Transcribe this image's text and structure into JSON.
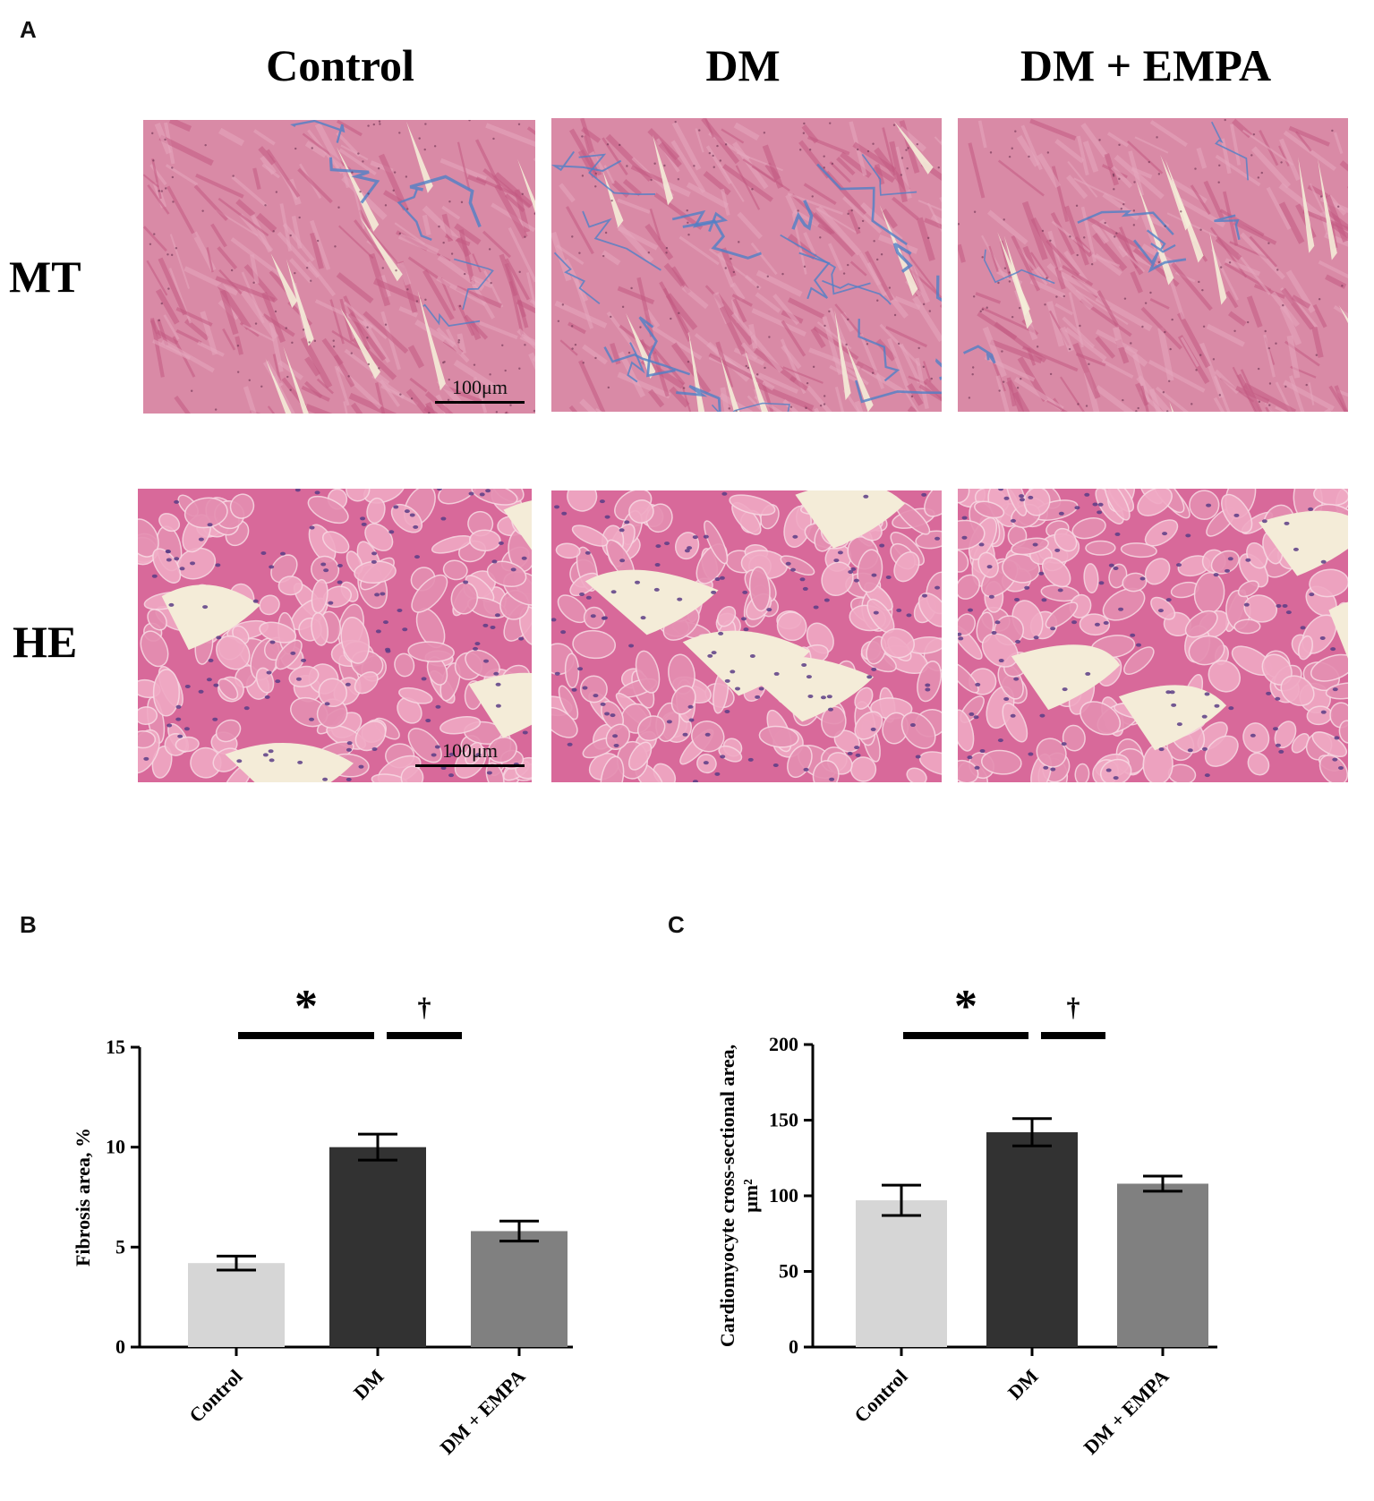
{
  "panel_a": {
    "letter": "A",
    "columns": [
      "Control",
      "DM",
      "DM + EMPA"
    ],
    "rows": [
      "MT",
      "HE"
    ],
    "scale_label": "100μm",
    "stain_colors": {
      "mt_bg": "#d98aa6",
      "mt_fiber": "#c25a82",
      "mt_collagen": "#4f7fc7",
      "he_bg": "#e58fb2",
      "he_cell": "#d8699a",
      "he_nuclei": "#5b3d86",
      "gap": "#f4ecd8"
    }
  },
  "panel_b": {
    "letter": "B"
  },
  "panel_c": {
    "letter": "C"
  },
  "chart_data": [
    {
      "type": "bar",
      "categories": [
        "Control",
        "DM",
        "DM + EMPA"
      ],
      "values": [
        4.2,
        10.0,
        5.8
      ],
      "errors": [
        0.35,
        0.65,
        0.5
      ],
      "colors": [
        "#d6d6d6",
        "#323232",
        "#808080"
      ],
      "ylabel": "Fibrosis area, %",
      "ylim": [
        0,
        15
      ],
      "yticks": [
        "0",
        "5",
        "10",
        "15"
      ],
      "significance": [
        {
          "symbol": "*",
          "between": [
            "Control",
            "DM"
          ]
        },
        {
          "symbol": "†",
          "between": [
            "DM",
            "DM + EMPA"
          ]
        }
      ]
    },
    {
      "type": "bar",
      "categories": [
        "Control",
        "DM",
        "DM + EMPA"
      ],
      "values": [
        97,
        142,
        108
      ],
      "errors": [
        10,
        9,
        5
      ],
      "colors": [
        "#d6d6d6",
        "#323232",
        "#808080"
      ],
      "ylabel": "Cardiomyocyte cross-sectional area,",
      "ylabel2": "μm²",
      "ylim": [
        0,
        200
      ],
      "yticks": [
        "0",
        "50",
        "100",
        "150",
        "200"
      ],
      "significance": [
        {
          "symbol": "*",
          "between": [
            "Control",
            "DM"
          ]
        },
        {
          "symbol": "†",
          "between": [
            "DM",
            "DM + EMPA"
          ]
        }
      ]
    }
  ]
}
